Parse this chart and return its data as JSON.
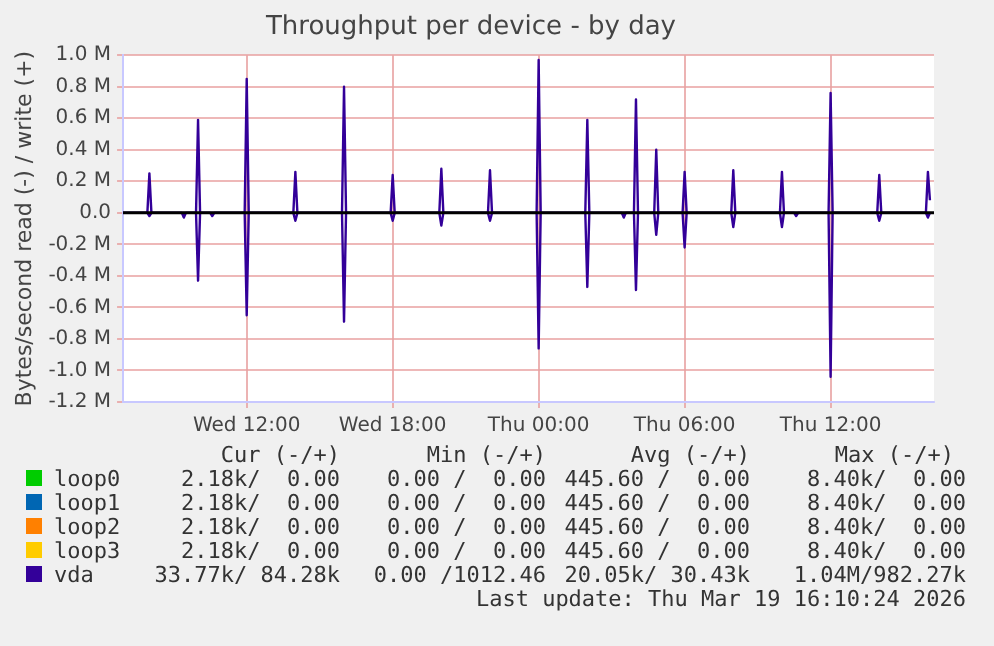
{
  "chart_data": {
    "type": "line",
    "title": "Throughput per device - by day",
    "ylabel": "Bytes/second read (-) / write (+)",
    "xlim": [
      "2026-03-18T06:55",
      "2026-03-19T16:15"
    ],
    "xticks": [
      {
        "value": "2026-03-18T12:00",
        "label": "Wed 12:00"
      },
      {
        "value": "2026-03-18T18:00",
        "label": "Wed 18:00"
      },
      {
        "value": "2026-03-19T00:00",
        "label": "Thu 00:00"
      },
      {
        "value": "2026-03-19T06:00",
        "label": "Thu 06:00"
      },
      {
        "value": "2026-03-19T12:00",
        "label": "Thu 12:00"
      }
    ],
    "ylim": [
      -1200000,
      1000000
    ],
    "yticks": [
      {
        "value": 1000000,
        "label": "1.0 M"
      },
      {
        "value": 800000,
        "label": "0.8 M"
      },
      {
        "value": 600000,
        "label": "0.6 M"
      },
      {
        "value": 400000,
        "label": "0.4 M"
      },
      {
        "value": 200000,
        "label": "0.2 M"
      },
      {
        "value": 0,
        "label": "0.0"
      },
      {
        "value": -200000,
        "label": "-0.2 M"
      },
      {
        "value": -400000,
        "label": "-0.4 M"
      },
      {
        "value": -600000,
        "label": "-0.6 M"
      },
      {
        "value": -800000,
        "label": "-0.8 M"
      },
      {
        "value": -1000000,
        "label": "-1.0 M"
      },
      {
        "value": -1200000,
        "label": "-1.2 M"
      }
    ],
    "grid": true,
    "legend": "bottom",
    "marker": "none",
    "line_style": "solid",
    "ref_lines": [
      {
        "axis": "y",
        "value": 0,
        "color": "#000000"
      }
    ],
    "series": [
      {
        "name": "vda",
        "color": "#330099",
        "x": [
          "2026-03-18T06:55",
          "2026-03-18T07:55",
          "2026-03-18T08:00",
          "2026-03-18T08:05",
          "2026-03-18T09:55",
          "2026-03-18T10:00",
          "2026-03-18T10:05",
          "2026-03-18T11:55",
          "2026-03-18T12:00",
          "2026-03-18T12:05",
          "2026-03-18T13:55",
          "2026-03-18T14:00",
          "2026-03-18T14:05",
          "2026-03-18T15:55",
          "2026-03-18T16:00",
          "2026-03-18T16:05",
          "2026-03-18T17:55",
          "2026-03-18T18:00",
          "2026-03-18T18:05",
          "2026-03-18T19:55",
          "2026-03-18T20:00",
          "2026-03-18T20:05",
          "2026-03-18T21:55",
          "2026-03-18T22:00",
          "2026-03-18T22:05",
          "2026-03-18T23:55",
          "2026-03-19T00:00",
          "2026-03-19T00:05",
          "2026-03-19T01:55",
          "2026-03-19T02:00",
          "2026-03-19T02:05",
          "2026-03-19T03:55",
          "2026-03-19T04:00",
          "2026-03-19T04:05",
          "2026-03-19T04:45",
          "2026-03-19T04:50",
          "2026-03-19T04:55",
          "2026-03-19T05:55",
          "2026-03-19T06:00",
          "2026-03-19T06:05",
          "2026-03-19T07:55",
          "2026-03-19T08:00",
          "2026-03-19T08:05",
          "2026-03-19T09:55",
          "2026-03-19T10:00",
          "2026-03-19T10:05",
          "2026-03-19T11:55",
          "2026-03-19T12:00",
          "2026-03-19T12:05",
          "2026-03-19T13:55",
          "2026-03-19T14:00",
          "2026-03-19T14:05",
          "2026-03-19T15:55",
          "2026-03-19T16:00",
          "2026-03-19T16:05"
        ],
        "values": [
          0,
          0,
          250000,
          0,
          0,
          590000,
          0,
          0,
          850000,
          0,
          0,
          260000,
          0,
          0,
          800000,
          0,
          0,
          240000,
          0,
          0,
          280000,
          0,
          0,
          270000,
          0,
          0,
          970000,
          0,
          0,
          590000,
          0,
          0,
          720000,
          0,
          0,
          400000,
          0,
          0,
          260000,
          0,
          0,
          270000,
          0,
          0,
          260000,
          0,
          0,
          760000,
          0,
          0,
          240000,
          0,
          0,
          260000,
          80000
        ]
      },
      {
        "color": "#330099",
        "x": [
          "2026-03-18T06:55",
          "2026-03-18T07:55",
          "2026-03-18T08:00",
          "2026-03-18T08:05",
          "2026-03-18T09:20",
          "2026-03-18T09:25",
          "2026-03-18T09:30",
          "2026-03-18T09:55",
          "2026-03-18T10:00",
          "2026-03-18T10:05",
          "2026-03-18T10:30",
          "2026-03-18T10:35",
          "2026-03-18T10:40",
          "2026-03-18T11:55",
          "2026-03-18T12:00",
          "2026-03-18T12:05",
          "2026-03-18T13:55",
          "2026-03-18T14:00",
          "2026-03-18T14:05",
          "2026-03-18T15:55",
          "2026-03-18T16:00",
          "2026-03-18T16:05",
          "2026-03-18T17:55",
          "2026-03-18T18:00",
          "2026-03-18T18:05",
          "2026-03-18T19:55",
          "2026-03-18T20:00",
          "2026-03-18T20:05",
          "2026-03-18T21:55",
          "2026-03-18T22:00",
          "2026-03-18T22:05",
          "2026-03-18T23:55",
          "2026-03-19T00:00",
          "2026-03-19T00:05",
          "2026-03-19T01:55",
          "2026-03-19T02:00",
          "2026-03-19T02:05",
          "2026-03-19T03:25",
          "2026-03-19T03:30",
          "2026-03-19T03:35",
          "2026-03-19T03:55",
          "2026-03-19T04:00",
          "2026-03-19T04:05",
          "2026-03-19T04:45",
          "2026-03-19T04:50",
          "2026-03-19T04:55",
          "2026-03-19T05:55",
          "2026-03-19T06:00",
          "2026-03-19T06:05",
          "2026-03-19T07:55",
          "2026-03-19T08:00",
          "2026-03-19T08:05",
          "2026-03-19T09:55",
          "2026-03-19T10:00",
          "2026-03-19T10:05",
          "2026-03-19T10:30",
          "2026-03-19T10:35",
          "2026-03-19T10:40",
          "2026-03-19T11:55",
          "2026-03-19T12:00",
          "2026-03-19T12:05",
          "2026-03-19T13:55",
          "2026-03-19T14:00",
          "2026-03-19T14:05",
          "2026-03-19T15:55",
          "2026-03-19T16:00",
          "2026-03-19T16:05"
        ],
        "values": [
          0,
          0,
          -20000,
          0,
          0,
          -30000,
          0,
          0,
          -430000,
          0,
          0,
          -20000,
          0,
          0,
          -650000,
          0,
          0,
          -50000,
          0,
          0,
          -690000,
          0,
          0,
          -50000,
          0,
          0,
          -80000,
          0,
          0,
          -50000,
          0,
          0,
          -860000,
          0,
          0,
          -470000,
          0,
          0,
          -30000,
          0,
          0,
          -490000,
          0,
          0,
          -140000,
          0,
          0,
          -220000,
          0,
          0,
          -90000,
          0,
          0,
          -90000,
          0,
          0,
          -20000,
          0,
          0,
          -1040000,
          0,
          0,
          -50000,
          0,
          0,
          -30000,
          0
        ]
      },
      {
        "name": "loop0",
        "color": "#00cc00"
      },
      {
        "name": "loop1",
        "color": "#0066b3"
      },
      {
        "name": "loop2",
        "color": "#ff8000"
      },
      {
        "name": "loop3",
        "color": "#ffcc00"
      }
    ],
    "annotations": [
      "Cur (-/+)",
      "Min (-/+)",
      "Avg (-/+)",
      "Max (-/+)",
      "33.77k/ 84.28k",
      "0.00 /1012.46",
      "20.05k/ 30.43k",
      "1.04M/982.27k",
      "2.18k/  0.00",
      "0.00 /  0.00",
      "445.60 /  0.00",
      "8.40k/  0.00",
      "2.18k/  0.00",
      "0.00 /  0.00",
      "445.60 /  0.00",
      "8.40k/  0.00",
      "2.18k/  0.00",
      "0.00 /  0.00",
      "445.60 /  0.00",
      "8.40k/  0.00",
      "2.18k/  0.00",
      "0.00 /  0.00",
      "445.60 /  0.00",
      "8.40k/  0.00",
      "Last update: Thu Mar 19 16:10:24 2026"
    ]
  }
}
